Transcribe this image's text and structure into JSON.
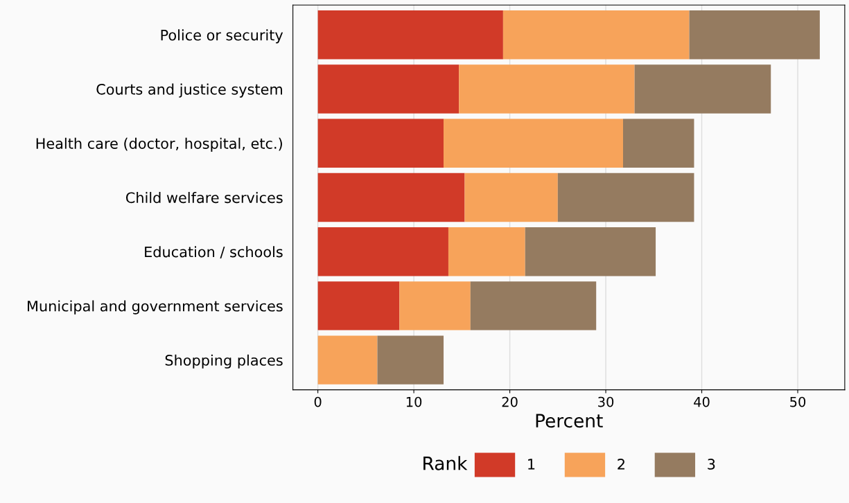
{
  "chart_data": {
    "type": "bar",
    "orientation": "horizontal",
    "stacked": true,
    "categories": [
      "Police or security",
      "Courts and justice system",
      "Health care (doctor, hospital, etc.)",
      "Child welfare services",
      "Education / schools",
      "Municipal and government services",
      "Shopping places"
    ],
    "series": [
      {
        "name": "1",
        "color": "#d13a28",
        "values": [
          19.3,
          14.7,
          13.1,
          15.3,
          13.6,
          8.5,
          0
        ]
      },
      {
        "name": "2",
        "color": "#f7a35a",
        "values": [
          19.4,
          18.3,
          18.7,
          9.7,
          8.0,
          7.4,
          6.2
        ]
      },
      {
        "name": "3",
        "color": "#957b60",
        "values": [
          13.6,
          14.2,
          7.4,
          14.2,
          13.6,
          13.1,
          6.9
        ]
      }
    ],
    "xlabel": "Percent",
    "legend_title": "Rank",
    "legend": "bottom",
    "grid": "x",
    "xlim": [
      -2.6,
      54.9
    ],
    "xticks": [
      0,
      10,
      20,
      30,
      40,
      50
    ]
  }
}
